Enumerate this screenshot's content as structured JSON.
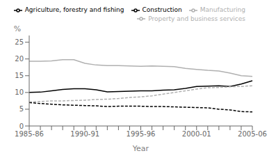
{
  "chart_data": {
    "type": "line",
    "xlabel": "Year",
    "ylabel": "%",
    "categories": [
      "1985-86",
      null,
      null,
      null,
      null,
      "1990-91",
      null,
      null,
      null,
      null,
      "1995-96",
      null,
      null,
      null,
      null,
      "2000-01",
      null,
      null,
      null,
      null,
      "2005-06"
    ],
    "series": [
      {
        "name": "Construction",
        "color": "#000000",
        "line_style": "solid",
        "values": [
          10.0,
          10.1,
          10.5,
          10.9,
          11.1,
          11.1,
          10.8,
          10.2,
          10.3,
          10.4,
          10.5,
          10.5,
          10.7,
          10.8,
          11.2,
          11.8,
          11.9,
          12.0,
          11.8,
          12.5,
          13.5
        ]
      },
      {
        "name": "Manufacturing",
        "color": "#b0b0b0",
        "line_style": "solid",
        "values": [
          19.3,
          19.3,
          19.4,
          19.8,
          19.8,
          18.7,
          18.2,
          18.0,
          18.0,
          17.9,
          17.8,
          17.9,
          17.8,
          17.7,
          17.2,
          16.9,
          16.6,
          16.4,
          15.8,
          15.0,
          14.8
        ]
      },
      {
        "name": "Agriculture, forestry and fishing",
        "color": "#000000",
        "line_style": "dashed",
        "values": [
          7.0,
          6.7,
          6.5,
          6.3,
          6.2,
          6.1,
          6.0,
          5.8,
          5.9,
          5.9,
          5.9,
          5.8,
          5.8,
          5.7,
          5.6,
          5.5,
          5.4,
          5.0,
          4.8,
          4.3,
          4.2
        ]
      },
      {
        "name": "Property and business services",
        "color": "#b0b0b0",
        "line_style": "dashed",
        "values": [
          7.2,
          7.3,
          7.5,
          7.5,
          7.6,
          7.7,
          7.9,
          8.0,
          8.2,
          8.5,
          8.7,
          9.0,
          9.5,
          10.0,
          10.5,
          11.0,
          11.4,
          11.5,
          11.7,
          11.8,
          12.0
        ]
      }
    ],
    "ylim": [
      0,
      27
    ],
    "yticks": [
      0,
      5,
      10,
      15,
      20,
      25
    ],
    "grid": false,
    "legend": "upper right"
  }
}
